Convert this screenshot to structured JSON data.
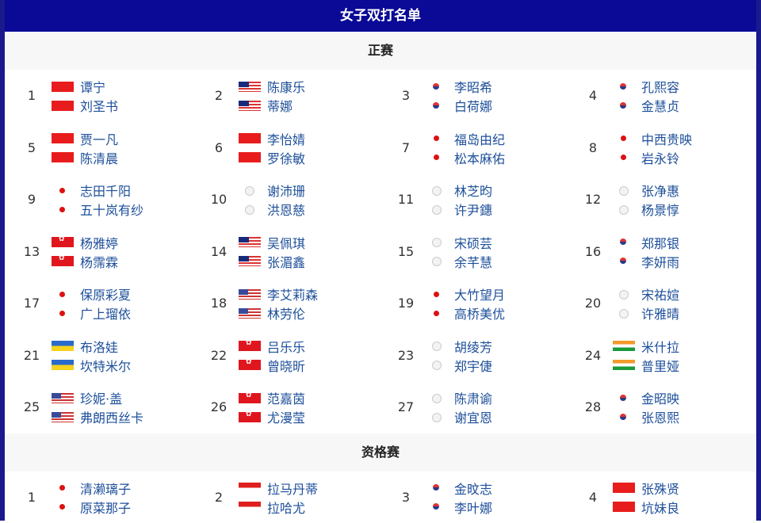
{
  "title": "女子双打名单",
  "main_draw": {
    "label": "正赛",
    "entries": [
      {
        "seed": "1",
        "players": [
          {
            "name": "谭宁",
            "flag": "cn"
          },
          {
            "name": "刘圣书",
            "flag": "cn"
          }
        ]
      },
      {
        "seed": "2",
        "players": [
          {
            "name": "陈康乐",
            "flag": "my"
          },
          {
            "name": "蒂娜",
            "flag": "my"
          }
        ]
      },
      {
        "seed": "3",
        "players": [
          {
            "name": "李昭希",
            "flag": "kr"
          },
          {
            "name": "白荷娜",
            "flag": "kr"
          }
        ]
      },
      {
        "seed": "4",
        "players": [
          {
            "name": "孔熙容",
            "flag": "kr"
          },
          {
            "name": "金慧贞",
            "flag": "kr"
          }
        ]
      },
      {
        "seed": "5",
        "players": [
          {
            "name": "贾一凡",
            "flag": "cn"
          },
          {
            "name": "陈清晨",
            "flag": "cn"
          }
        ]
      },
      {
        "seed": "6",
        "players": [
          {
            "name": "李怡婧",
            "flag": "cn"
          },
          {
            "name": "罗徐敏",
            "flag": "cn"
          }
        ]
      },
      {
        "seed": "7",
        "players": [
          {
            "name": "福岛由纪",
            "flag": "jp"
          },
          {
            "name": "松本麻佑",
            "flag": "jp"
          }
        ]
      },
      {
        "seed": "8",
        "players": [
          {
            "name": "中西贵映",
            "flag": "jp"
          },
          {
            "name": "岩永铃",
            "flag": "jp"
          }
        ]
      },
      {
        "seed": "9",
        "players": [
          {
            "name": "志田千阳",
            "flag": "jp"
          },
          {
            "name": "五十岚有纱",
            "flag": "jp"
          }
        ]
      },
      {
        "seed": "10",
        "players": [
          {
            "name": "谢沛珊",
            "flag": "tpe"
          },
          {
            "name": "洪恩慈",
            "flag": "tpe"
          }
        ]
      },
      {
        "seed": "11",
        "players": [
          {
            "name": "林芝昀",
            "flag": "tpe"
          },
          {
            "name": "许尹鏸",
            "flag": "tpe"
          }
        ]
      },
      {
        "seed": "12",
        "players": [
          {
            "name": "张净惠",
            "flag": "tpe"
          },
          {
            "name": "杨景惇",
            "flag": "tpe"
          }
        ]
      },
      {
        "seed": "13",
        "players": [
          {
            "name": "杨雅婷",
            "flag": "hk"
          },
          {
            "name": "杨霈霖",
            "flag": "hk"
          }
        ]
      },
      {
        "seed": "14",
        "players": [
          {
            "name": "吴佩琪",
            "flag": "my"
          },
          {
            "name": "张湄鑫",
            "flag": "my"
          }
        ]
      },
      {
        "seed": "15",
        "players": [
          {
            "name": "宋硕芸",
            "flag": "tpe"
          },
          {
            "name": "余芊慧",
            "flag": "tpe"
          }
        ]
      },
      {
        "seed": "16",
        "players": [
          {
            "name": "郑那银",
            "flag": "kr"
          },
          {
            "name": "李妍雨",
            "flag": "kr"
          }
        ]
      },
      {
        "seed": "17",
        "players": [
          {
            "name": "保原彩夏",
            "flag": "jp"
          },
          {
            "name": "广上瑠依",
            "flag": "jp"
          }
        ]
      },
      {
        "seed": "18",
        "players": [
          {
            "name": "李艾莉森",
            "flag": "us"
          },
          {
            "name": "林劳伦",
            "flag": "us"
          }
        ]
      },
      {
        "seed": "19",
        "players": [
          {
            "name": "大竹望月",
            "flag": "jp"
          },
          {
            "name": "高桥美优",
            "flag": "jp"
          }
        ]
      },
      {
        "seed": "20",
        "players": [
          {
            "name": "宋祐媗",
            "flag": "tpe"
          },
          {
            "name": "许雅晴",
            "flag": "tpe"
          }
        ]
      },
      {
        "seed": "21",
        "players": [
          {
            "name": "布洛娃",
            "flag": "ua"
          },
          {
            "name": "坎特米尔",
            "flag": "ua"
          }
        ]
      },
      {
        "seed": "22",
        "players": [
          {
            "name": "吕乐乐",
            "flag": "hk"
          },
          {
            "name": "曾晓昕",
            "flag": "hk"
          }
        ]
      },
      {
        "seed": "23",
        "players": [
          {
            "name": "胡绫芳",
            "flag": "tpe"
          },
          {
            "name": "郑宇倢",
            "flag": "tpe"
          }
        ]
      },
      {
        "seed": "24",
        "players": [
          {
            "name": "米什拉",
            "flag": "in"
          },
          {
            "name": "普里娅",
            "flag": "in"
          }
        ]
      },
      {
        "seed": "25",
        "players": [
          {
            "name": "珍妮·盖",
            "flag": "us"
          },
          {
            "name": "弗朗西丝卡",
            "flag": "us"
          }
        ]
      },
      {
        "seed": "26",
        "players": [
          {
            "name": "范嘉茵",
            "flag": "hk"
          },
          {
            "name": "尤漫莹",
            "flag": "hk"
          }
        ]
      },
      {
        "seed": "27",
        "players": [
          {
            "name": "陈肃谕",
            "flag": "tpe"
          },
          {
            "name": "谢宜恩",
            "flag": "tpe"
          }
        ]
      },
      {
        "seed": "28",
        "players": [
          {
            "name": "金昭映",
            "flag": "kr"
          },
          {
            "name": "张恩熙",
            "flag": "kr"
          }
        ]
      }
    ]
  },
  "qualifying": {
    "label": "资格赛",
    "entries": [
      {
        "seed": "1",
        "players": [
          {
            "name": "清濑璃子",
            "flag": "jp"
          },
          {
            "name": "原菜那子",
            "flag": "jp"
          }
        ]
      },
      {
        "seed": "2",
        "players": [
          {
            "name": "拉马丹蒂",
            "flag": "id"
          },
          {
            "name": "拉哈尤",
            "flag": "id"
          }
        ]
      },
      {
        "seed": "3",
        "players": [
          {
            "name": "金旼志",
            "flag": "kr"
          },
          {
            "name": "李叶娜",
            "flag": "kr"
          }
        ]
      },
      {
        "seed": "4",
        "players": [
          {
            "name": "张殊贤",
            "flag": "cn"
          },
          {
            "name": "坑妹良",
            "flag": "cn"
          }
        ]
      }
    ]
  }
}
